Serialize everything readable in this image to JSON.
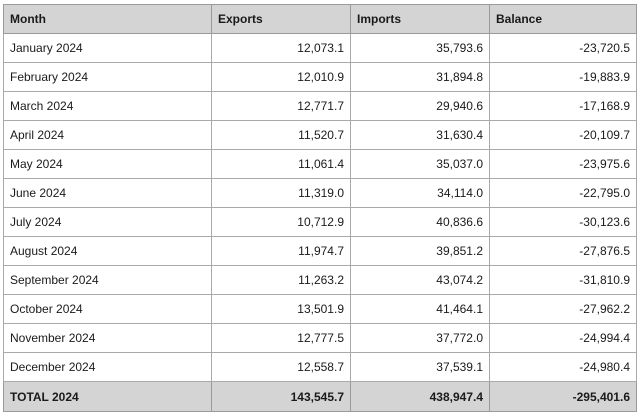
{
  "table": {
    "headers": [
      "Month",
      "Exports",
      "Imports",
      "Balance"
    ],
    "rows": [
      [
        "January 2024",
        "12,073.1",
        "35,793.6",
        "-23,720.5"
      ],
      [
        "February 2024",
        "12,010.9",
        "31,894.8",
        "-19,883.9"
      ],
      [
        "March 2024",
        "12,771.7",
        "29,940.6",
        "-17,168.9"
      ],
      [
        "April 2024",
        "11,520.7",
        "31,630.4",
        "-20,109.7"
      ],
      [
        "May 2024",
        "11,061.4",
        "35,037.0",
        "-23,975.6"
      ],
      [
        "June 2024",
        "11,319.0",
        "34,114.0",
        "-22,795.0"
      ],
      [
        "July 2024",
        "10,712.9",
        "40,836.6",
        "-30,123.6"
      ],
      [
        "August 2024",
        "11,974.7",
        "39,851.2",
        "-27,876.5"
      ],
      [
        "September 2024",
        "11,263.2",
        "43,074.2",
        "-31,810.9"
      ],
      [
        "October 2024",
        "13,501.9",
        "41,464.1",
        "-27,962.2"
      ],
      [
        "November 2024",
        "12,777.5",
        "37,772.0",
        "-24,994.4"
      ],
      [
        "December 2024",
        "12,558.7",
        "37,539.1",
        "-24,980.4"
      ]
    ],
    "total": [
      "TOTAL 2024",
      "143,545.7",
      "438,947.4",
      "-295,401.6"
    ]
  }
}
